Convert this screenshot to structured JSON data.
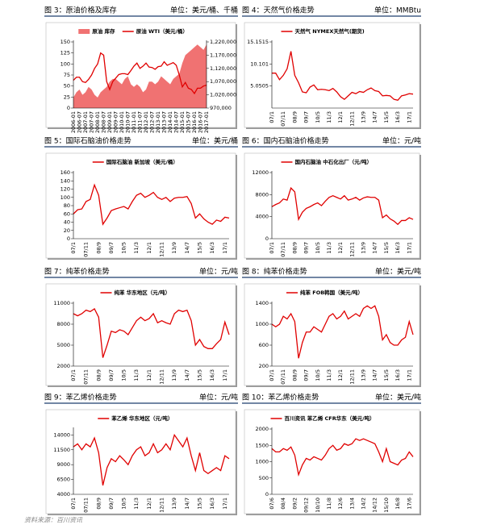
{
  "chart_data": [
    {
      "type": "line",
      "figure": "图 3：原油价格及库存",
      "unit": "单位：美元/桶、千桶",
      "x": [
        "2006-01",
        null,
        "2006-07",
        null,
        "2007-01",
        null,
        "2007-07",
        null,
        "2008-01",
        null,
        "2008-07",
        null,
        "2009-01",
        null,
        "2009-07",
        null,
        "2010-01",
        null,
        "2010-07",
        null,
        "2011-01",
        null,
        "2011-07",
        null,
        "2012-01",
        null,
        "2012-07",
        null,
        "2013-01",
        null,
        "2013-07",
        null,
        "2014-01",
        null,
        "2014-07",
        null,
        "2015-01",
        null,
        "2015-07",
        null,
        "2016-01",
        null,
        "2016-07",
        null,
        "2017-01"
      ],
      "series": [
        {
          "name": "原油 库存",
          "type": "area",
          "axis": "y2",
          "color": "#f07272",
          "values": [
            1010000,
            1030000,
            1040000,
            1020000,
            1030000,
            1050000,
            1040000,
            1020000,
            1010000,
            1030000,
            1040000,
            1050000,
            1070000,
            1080000,
            1080000,
            1070000,
            1060000,
            1080000,
            1090000,
            1060000,
            1050000,
            1060000,
            1050000,
            1030000,
            1040000,
            1070000,
            1070000,
            1060000,
            1070000,
            1090000,
            1080000,
            1070000,
            1060000,
            1080000,
            1090000,
            1100000,
            1140000,
            1170000,
            1180000,
            1190000,
            1200000,
            1210000,
            1200000,
            1190000,
            1210000
          ]
        },
        {
          "name": "原油 WTI（美元/桶）",
          "type": "line",
          "color": "#e00000",
          "values": [
            63,
            70,
            70,
            60,
            58,
            65,
            75,
            90,
            100,
            125,
            120,
            60,
            42,
            60,
            68,
            76,
            78,
            78,
            76,
            85,
            95,
            102,
            90,
            95,
            102,
            93,
            92,
            88,
            94,
            95,
            105,
            97,
            100,
            103,
            97,
            75,
            48,
            58,
            45,
            42,
            33,
            45,
            45,
            50,
            52
          ]
        }
      ],
      "ylim": [
        0,
        150
      ],
      "yticks": [
        0,
        25,
        50,
        75,
        100,
        125,
        150
      ],
      "y2lim": [
        970000,
        1220000
      ],
      "y2ticks": [
        {
          "value": 970000,
          "label": "970,000"
        },
        {
          "value": 1020000,
          "label": "1,020,000"
        },
        {
          "value": 1070000,
          "label": "1,070,000"
        },
        {
          "value": 1120000,
          "label": "1,120,000"
        },
        {
          "value": 1170000,
          "label": "1,170,000"
        },
        {
          "value": 1220000,
          "label": "1,220,000"
        }
      ]
    },
    {
      "type": "line",
      "figure": "图 4：天然气价格走势",
      "unit": "单位：MMBtu",
      "x": [
        "07/1",
        null,
        null,
        "07/11",
        null,
        null,
        "08/9",
        null,
        null,
        "09/7",
        null,
        null,
        "10/5",
        null,
        null,
        "11/3",
        null,
        null,
        "12/1",
        null,
        null,
        "12/11",
        null,
        null,
        "13/9",
        null,
        null,
        "14/7",
        null,
        null,
        "15/5",
        null,
        null,
        "16/3",
        null,
        null,
        "17/1",
        null
      ],
      "series": [
        {
          "name": "天然气 NYMEX天然气(期货)",
          "color": "#e00000",
          "values": [
            8,
            8,
            6.5,
            7.5,
            9,
            13,
            7.5,
            5.8,
            3.7,
            3.5,
            4.8,
            5.3,
            4.2,
            4.3,
            4.2,
            4,
            4.5,
            3.7,
            2.6,
            2,
            2.8,
            3.6,
            3.3,
            3.8,
            3.6,
            4.2,
            4.6,
            4,
            3.8,
            2.8,
            2.9,
            2.8,
            2,
            1.8,
            2.8,
            3,
            3.3,
            3.2
          ]
        }
      ],
      "ylim": [
        0,
        15.1515
      ],
      "yticks": [
        5.0505,
        10.101,
        15.1515
      ]
    },
    {
      "type": "line",
      "figure": "图 5：国际石脑油价格走势",
      "unit": "单位：美元/桶",
      "x": [
        "07/1",
        null,
        null,
        "07/11",
        null,
        null,
        "08/9",
        null,
        null,
        "09/7",
        null,
        null,
        "10/5",
        null,
        null,
        "11/3",
        null,
        null,
        "12/1",
        null,
        null,
        "12/11",
        null,
        null,
        "13/9",
        null,
        null,
        "14/7",
        null,
        null,
        "15/5",
        null,
        null,
        "16/3",
        null,
        null,
        "17/1",
        null
      ],
      "series": [
        {
          "name": "国际石脑油 新加坡（美元/桶）",
          "color": "#e00000",
          "values": [
            60,
            70,
            72,
            90,
            95,
            130,
            105,
            35,
            50,
            68,
            72,
            75,
            78,
            72,
            90,
            105,
            110,
            100,
            105,
            112,
            100,
            95,
            100,
            90,
            98,
            100,
            100,
            102,
            85,
            50,
            60,
            48,
            40,
            35,
            45,
            42,
            52,
            50
          ]
        }
      ],
      "ylim": [
        0,
        160
      ],
      "yticks": [
        0,
        20,
        40,
        60,
        80,
        100,
        120,
        140,
        160
      ]
    },
    {
      "type": "line",
      "figure": "图 6：国内石脑油价格走势",
      "unit": "单位：元/吨",
      "x": [
        "07/1",
        null,
        null,
        "07/11",
        null,
        null,
        "08/9",
        null,
        null,
        "09/7",
        null,
        null,
        "10/5",
        null,
        null,
        "11/3",
        null,
        null,
        "12/1",
        null,
        null,
        "12/11",
        null,
        null,
        "13/9",
        null,
        null,
        "14/7",
        null,
        null,
        "15/5",
        null,
        null,
        "16/3",
        null,
        null,
        "17/1",
        null
      ],
      "series": [
        {
          "name": "国内石脑油 中石化出厂（元/吨）",
          "color": "#e00000",
          "values": [
            5800,
            6200,
            6500,
            7200,
            7000,
            9200,
            8500,
            3500,
            4800,
            5500,
            5800,
            6200,
            6500,
            6000,
            6800,
            7500,
            7800,
            7500,
            7200,
            7800,
            7000,
            7200,
            7500,
            7000,
            7400,
            7600,
            7500,
            7500,
            7000,
            3800,
            4300,
            3600,
            3200,
            2600,
            3300,
            3300,
            3800,
            3500
          ]
        }
      ],
      "ylim": [
        0,
        12000
      ],
      "yticks": [
        0,
        4000,
        8000,
        12000
      ]
    },
    {
      "type": "line",
      "figure": "图 7：纯苯价格走势",
      "unit": "单位：元/吨",
      "x": [
        "07/1",
        null,
        null,
        "07/11",
        null,
        null,
        "08/9",
        null,
        null,
        "09/7",
        null,
        null,
        "10/5",
        null,
        null,
        "11/3",
        null,
        null,
        "12/1",
        null,
        null,
        "12/11",
        null,
        null,
        "13/9",
        null,
        null,
        "14/7",
        null,
        null,
        "15/5",
        null,
        null,
        "16/3",
        null,
        null,
        "17/1",
        null
      ],
      "series": [
        {
          "name": "纯苯 华东地区（元/吨）",
          "color": "#e00000",
          "values": [
            9500,
            9200,
            9500,
            10000,
            9800,
            10200,
            9000,
            3200,
            5000,
            7000,
            6800,
            7200,
            7000,
            6500,
            7500,
            8500,
            9000,
            8500,
            8800,
            9500,
            8200,
            8500,
            8200,
            8000,
            9500,
            10000,
            9800,
            10000,
            8500,
            5000,
            5800,
            4800,
            4500,
            4500,
            5200,
            5800,
            8300,
            6500
          ]
        }
      ],
      "ylim": [
        2000,
        11000
      ],
      "yticks": [
        2000,
        5000,
        8000,
        11000
      ]
    },
    {
      "type": "line",
      "figure": "图 8：纯苯价格走势",
      "unit": "单位：美元/吨",
      "x": [
        "07/1",
        null,
        null,
        "07/11",
        null,
        null,
        "08/9",
        null,
        null,
        "09/7",
        null,
        null,
        "10/5",
        null,
        null,
        "11/3",
        null,
        null,
        "12/1",
        null,
        null,
        "12/11",
        null,
        null,
        "13/9",
        null,
        null,
        "14/7",
        null,
        null,
        "15/5",
        null,
        null,
        "16/3",
        null,
        null,
        "17/1",
        null
      ],
      "series": [
        {
          "name": "纯苯 FOB韩国（美元/吨）",
          "color": "#e00000",
          "values": [
            1000,
            950,
            1000,
            1150,
            1100,
            1200,
            1050,
            350,
            650,
            850,
            850,
            950,
            900,
            850,
            1000,
            1150,
            1200,
            1100,
            1150,
            1250,
            1100,
            1150,
            1200,
            1150,
            1300,
            1350,
            1300,
            1350,
            1150,
            700,
            800,
            650,
            600,
            600,
            700,
            750,
            1050,
            800
          ]
        }
      ],
      "ylim": [
        200,
        1400
      ],
      "yticks": [
        200,
        600,
        1000,
        1400
      ]
    },
    {
      "type": "line",
      "figure": "图 9：苯乙烯价格走势",
      "unit": "单位：元/吨",
      "x": [
        "07/1",
        null,
        null,
        "07/11",
        null,
        null,
        "08/9",
        null,
        null,
        "09/7",
        null,
        null,
        "10/5",
        null,
        null,
        "11/3",
        null,
        null,
        "12/1",
        null,
        null,
        "12/11",
        null,
        null,
        "13/9",
        null,
        null,
        "14/7",
        null,
        null,
        "15/5",
        null,
        null,
        "16/3",
        null,
        null,
        "17/1",
        null
      ],
      "series": [
        {
          "name": "苯乙烯 华东地区（元/吨）",
          "color": "#e00000",
          "values": [
            12000,
            12500,
            11500,
            12500,
            12000,
            13500,
            11000,
            5500,
            8500,
            10000,
            9500,
            10500,
            9800,
            9000,
            10500,
            11500,
            12000,
            10500,
            11000,
            12500,
            11000,
            11500,
            12500,
            11500,
            14000,
            13000,
            12000,
            13500,
            10500,
            8000,
            11000,
            8000,
            7500,
            8000,
            8500,
            8000,
            10500,
            10000
          ]
        }
      ],
      "ylim": [
        4000,
        15000
      ],
      "yticks": [
        4000,
        6500,
        9000,
        11500,
        14000
      ]
    },
    {
      "type": "line",
      "figure": "图 10：苯乙烯价格走势",
      "unit": "单位：美元/吨",
      "x": [
        "07/6",
        null,
        null,
        "08/4",
        null,
        null,
        "09/2",
        null,
        null,
        "09/12",
        null,
        null,
        "10/10",
        null,
        null,
        "11/8",
        null,
        null,
        "12/6",
        null,
        null,
        "13/4",
        null,
        null,
        "14/2",
        null,
        null,
        "14/12",
        null,
        null,
        "15/10",
        null,
        null,
        "16/8",
        null,
        null,
        "17/6",
        null
      ],
      "series": [
        {
          "name": "百川资讯 苯乙烯 CFR华东（美元/吨）",
          "color": "#e00000",
          "values": [
            1400,
            1300,
            1300,
            1400,
            1350,
            1450,
            1200,
            600,
            900,
            1100,
            1050,
            1150,
            1100,
            1050,
            1200,
            1400,
            1500,
            1350,
            1400,
            1550,
            1500,
            1550,
            1700,
            1650,
            1700,
            1650,
            1600,
            1550,
            1300,
            1000,
            1400,
            1000,
            950,
            900,
            1050,
            1100,
            1300,
            1150
          ]
        }
      ],
      "ylim": [
        0,
        2000
      ],
      "yticks": [
        0,
        500,
        1000,
        1500,
        2000
      ]
    }
  ],
  "source": "资料来源：百川资讯"
}
